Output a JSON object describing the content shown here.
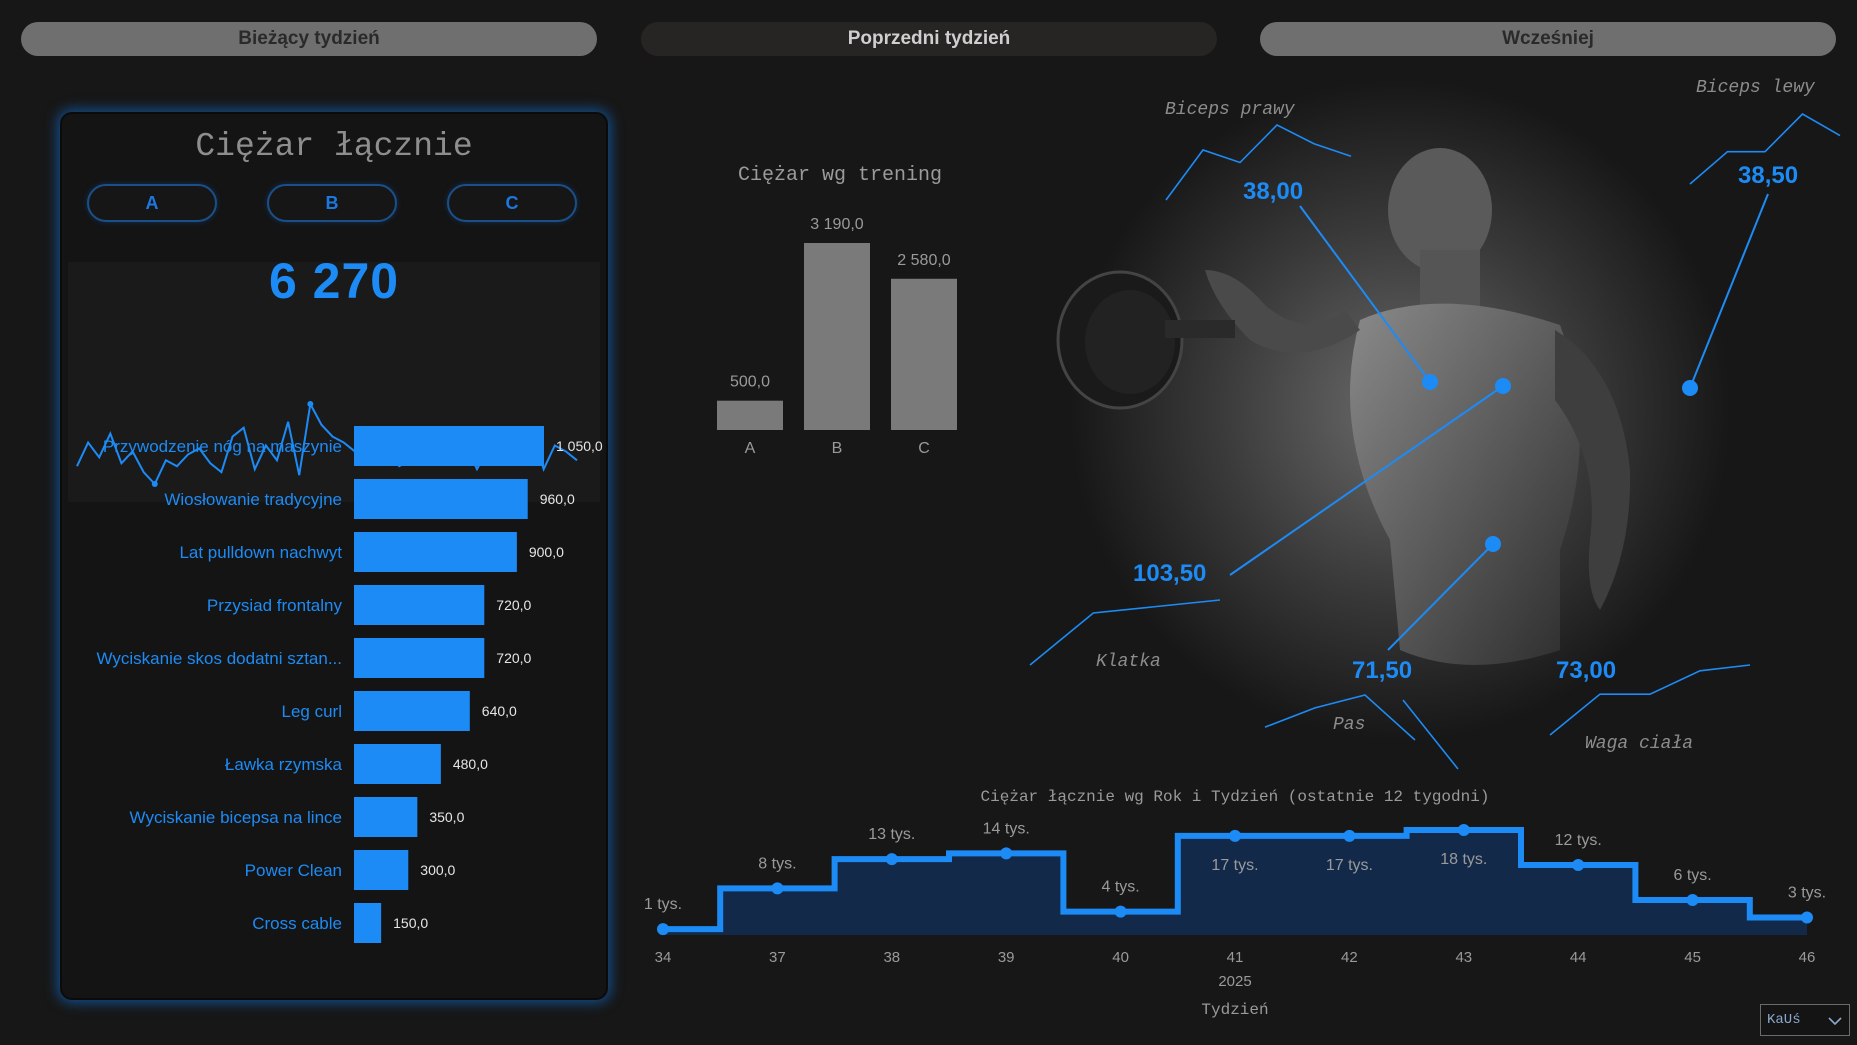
{
  "tabs": [
    {
      "label": "Bieżący tydzień"
    },
    {
      "label": "Poprzedni tydzień"
    },
    {
      "label": "Wcześniej"
    }
  ],
  "card": {
    "title": "Ciężar łącznie",
    "filters": [
      "A",
      "B",
      "C"
    ],
    "kpi": "6 270"
  },
  "colors": {
    "accent": "#1d8bf5",
    "bar_gray": "#7a7a7a",
    "area_fill": "#12294a"
  },
  "user": {
    "selected": "KaUś",
    "icon": "chevron-down-icon"
  },
  "chart_data": [
    {
      "type": "line",
      "role": "sparkline",
      "values": [
        12,
        20,
        15,
        23,
        13,
        17,
        10,
        6,
        14,
        12,
        16,
        18,
        13,
        10,
        22,
        25,
        11,
        19,
        14,
        27,
        9,
        33,
        26,
        22,
        20,
        17,
        21,
        16,
        18,
        12,
        14,
        17,
        16,
        21,
        13,
        19,
        11,
        18,
        14,
        21,
        16,
        23,
        11,
        19,
        17,
        14
      ]
    },
    {
      "type": "bar",
      "orientation": "horizontal",
      "categories": [
        "Przywodzenie nóg na maszynie",
        "Wiosłowanie tradycyjne",
        "Lat pulldown nachwyt",
        "Przysiad frontalny",
        "Wyciskanie skos dodatni sztan...",
        "Leg curl",
        "Ławka rzymska",
        "Wyciskanie bicepsa na lince",
        "Power Clean",
        "Cross cable"
      ],
      "values": [
        1050,
        960,
        900,
        720,
        720,
        640,
        480,
        350,
        300,
        150
      ],
      "value_labels": [
        "1 050,0",
        "960,0",
        "900,0",
        "720,0",
        "720,0",
        "640,0",
        "480,0",
        "350,0",
        "300,0",
        "150,0"
      ]
    },
    {
      "type": "bar",
      "title": "Ciężar wg trening",
      "categories": [
        "A",
        "B",
        "C"
      ],
      "values": [
        500,
        3190,
        2580
      ],
      "value_labels": [
        "500,0",
        "3 190,0",
        "2 580,0"
      ]
    },
    {
      "type": "line",
      "style": "step-area",
      "title": "Ciężar łącznie wg Rok i Tydzień (ostatnie 12 tygodni)",
      "xlabel": "Tydzień",
      "year": "2025",
      "categories": [
        "34",
        "37",
        "38",
        "39",
        "40",
        "41",
        "42",
        "43",
        "44",
        "45",
        "46"
      ],
      "values": [
        1,
        8,
        13,
        14,
        4,
        17,
        17,
        18,
        12,
        6,
        3
      ],
      "value_labels": [
        "1 tys.",
        "8 tys.",
        "13 tys.",
        "14 tys.",
        "4 tys.",
        "17 tys.",
        "17 tys.",
        "18 tys.",
        "12 tys.",
        "6 tys.",
        "3 tys."
      ]
    }
  ],
  "measurements": [
    {
      "label": "Biceps prawy",
      "value": "38,00",
      "trend": [
        2,
        10,
        8,
        14,
        11,
        9
      ]
    },
    {
      "label": "Biceps lewy",
      "value": "38,50",
      "trend": [
        3,
        9,
        9,
        16,
        12
      ]
    },
    {
      "label": "Klatka",
      "value": "103,50",
      "trend": [
        1,
        9,
        10,
        11
      ]
    },
    {
      "label": "Pas",
      "value": "71,50",
      "trend": [
        4,
        7,
        9,
        2
      ]
    },
    {
      "label": "Waga ciała",
      "value": "73,00",
      "trend": [
        2,
        9,
        9,
        13,
        14
      ]
    }
  ]
}
